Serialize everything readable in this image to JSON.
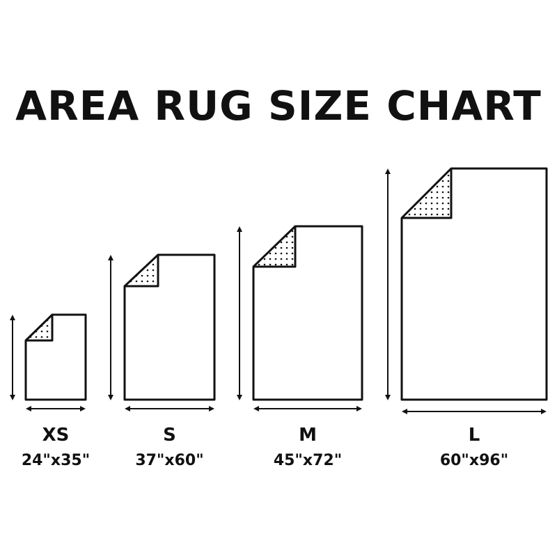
{
  "title": "AREA RUG SIZE CHART",
  "colors": {
    "ink": "#111111",
    "background": "#ffffff"
  },
  "rugs": [
    {
      "size": "XS",
      "dimensions": "24\"x35\"",
      "width_in": 24,
      "length_in": 35
    },
    {
      "size": "S",
      "dimensions": "37\"x60\"",
      "width_in": 37,
      "length_in": 60
    },
    {
      "size": "M",
      "dimensions": "45\"x72\"",
      "width_in": 45,
      "length_in": 72
    },
    {
      "size": "L",
      "dimensions": "60\"x96\"",
      "width_in": 60,
      "length_in": 96
    }
  ]
}
